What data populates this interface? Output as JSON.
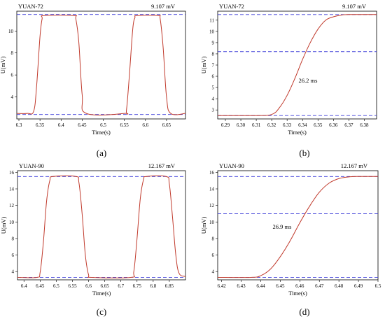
{
  "chart_data": [
    {
      "id": "a",
      "type": "line",
      "panel_label": "YUAN-72",
      "value_label": "9.107 mV",
      "xlabel": "Time(s)",
      "ylabel": "U(mV)",
      "xlim": [
        6.295,
        6.695
      ],
      "ylim": [
        2.0,
        11.8
      ],
      "xticks": [
        "6.3",
        "6.35",
        "6.4",
        "6.45",
        "6.5",
        "6.55",
        "6.6",
        "6.65"
      ],
      "yticks": [
        "4",
        "6",
        "8",
        "10"
      ],
      "ref_lines": [
        11.5,
        2.4
      ],
      "caption": "(a)",
      "series": [
        {
          "x": [
            6.295,
            6.32,
            6.335,
            6.342,
            6.35,
            6.355,
            6.36,
            6.43,
            6.435,
            6.442,
            6.45,
            6.46,
            6.55,
            6.555,
            6.562,
            6.57,
            6.575,
            6.58,
            6.63,
            6.635,
            6.642,
            6.65,
            6.66,
            6.695
          ],
          "y": [
            2.5,
            2.5,
            2.7,
            5.0,
            9.5,
            11.1,
            11.4,
            11.4,
            11.1,
            9.0,
            4.2,
            2.5,
            2.5,
            2.8,
            6.0,
            10.2,
            11.2,
            11.4,
            11.4,
            11.1,
            8.5,
            4.0,
            2.5,
            2.5
          ]
        }
      ]
    },
    {
      "id": "b",
      "type": "line",
      "panel_label": "YUAN-72",
      "value_label": "9.107 mV",
      "annotation": "26.2 ms",
      "xlabel": "Time(s)",
      "ylabel": "U(mV)",
      "xlim": [
        6.285,
        6.388
      ],
      "ylim": [
        2.2,
        11.8
      ],
      "xticks": [
        "6.29",
        "6.30",
        "6.31",
        "6.32",
        "6.33",
        "6.34",
        "6.35",
        "6.36",
        "6.37",
        "6.38"
      ],
      "yticks": [
        "3",
        "4",
        "5",
        "6",
        "7",
        "8",
        "9",
        "10",
        "11"
      ],
      "ref_lines": [
        11.5,
        8.2,
        2.5
      ],
      "caption": "(b)",
      "series": [
        {
          "x": [
            6.285,
            6.31,
            6.32,
            6.325,
            6.33,
            6.335,
            6.34,
            6.345,
            6.35,
            6.355,
            6.36,
            6.365,
            6.37,
            6.388
          ],
          "y": [
            2.5,
            2.5,
            2.6,
            3.2,
            4.3,
            5.8,
            7.5,
            9.0,
            10.2,
            11.0,
            11.3,
            11.45,
            11.5,
            11.5
          ]
        }
      ]
    },
    {
      "id": "c",
      "type": "line",
      "panel_label": "YUAN-90",
      "value_label": "12.167 mV",
      "xlabel": "Time(s)",
      "ylabel": "U(mV)",
      "xlim": [
        6.38,
        6.9
      ],
      "ylim": [
        3.0,
        16.2
      ],
      "xticks": [
        "6.4",
        "6.45",
        "6.5",
        "6.55",
        "6.6",
        "6.65",
        "6.7",
        "6.75",
        "6.8",
        "6.85"
      ],
      "yticks": [
        "4",
        "6",
        "8",
        "10",
        "12",
        "14",
        "16"
      ],
      "ref_lines": [
        15.5,
        3.3
      ],
      "caption": "(c)",
      "series": [
        {
          "x": [
            6.38,
            6.44,
            6.45,
            6.46,
            6.47,
            6.48,
            6.49,
            6.56,
            6.57,
            6.58,
            6.59,
            6.6,
            6.61,
            6.73,
            6.74,
            6.75,
            6.76,
            6.77,
            6.78,
            6.84,
            6.85,
            6.86,
            6.87,
            6.88,
            6.9
          ],
          "y": [
            3.3,
            3.3,
            3.9,
            7.5,
            12.5,
            15.0,
            15.5,
            15.5,
            14.8,
            11.0,
            6.0,
            3.6,
            3.3,
            3.3,
            4.0,
            8.0,
            12.8,
            15.1,
            15.5,
            15.5,
            14.6,
            10.5,
            6.0,
            3.8,
            3.4
          ]
        }
      ]
    },
    {
      "id": "d",
      "type": "line",
      "panel_label": "YUAN-90",
      "value_label": "12.167 mV",
      "annotation": "26.9 ms",
      "xlabel": "Time(s)",
      "ylabel": "U(mV)",
      "xlim": [
        6.418,
        6.5
      ],
      "ylim": [
        3.0,
        16.2
      ],
      "xticks": [
        "6.42",
        "6.43",
        "6.44",
        "6.45",
        "6.46",
        "6.47",
        "6.48",
        "6.49",
        "6.5"
      ],
      "yticks": [
        "4",
        "6",
        "8",
        "10",
        "12",
        "14",
        "16"
      ],
      "ref_lines": [
        15.5,
        11.0,
        3.3
      ],
      "caption": "(d)",
      "series": [
        {
          "x": [
            6.418,
            6.435,
            6.44,
            6.445,
            6.45,
            6.455,
            6.46,
            6.465,
            6.47,
            6.475,
            6.48,
            6.485,
            6.49,
            6.5
          ],
          "y": [
            3.3,
            3.3,
            3.5,
            4.3,
            5.8,
            7.7,
            9.9,
            11.9,
            13.6,
            14.7,
            15.25,
            15.45,
            15.5,
            15.5
          ]
        }
      ]
    }
  ]
}
